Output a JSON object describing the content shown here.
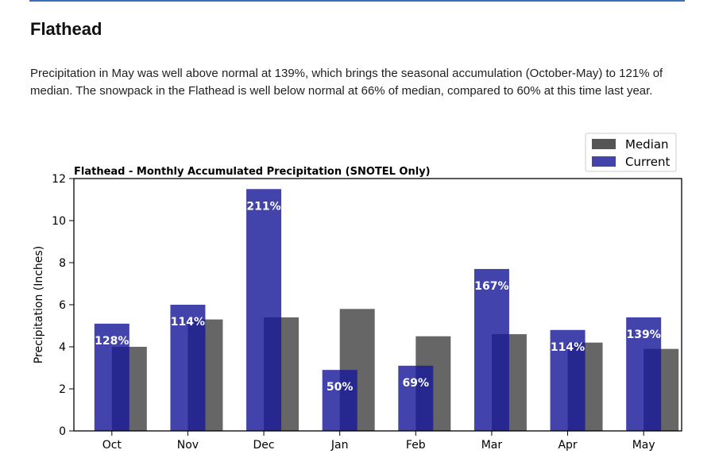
{
  "heading": "Flathead",
  "summary": "Precipitation in May was well above normal at 139%, which brings the seasonal accumulation (October-May) to 121% of median. The snowpack in the Flathead is well below normal at 66% of median, compared to 60% at this time last year.",
  "chart_data": {
    "type": "bar",
    "title": "Flathead - Monthly Accumulated Precipitation (SNOTEL Only)",
    "xlabel": "",
    "ylabel": "Precipitation (Inches)",
    "ylim": [
      0,
      12
    ],
    "yticks": [
      0,
      2,
      4,
      6,
      8,
      10,
      12
    ],
    "categories": [
      "Oct",
      "Nov",
      "Dec",
      "Jan",
      "Feb",
      "Mar",
      "Apr",
      "May"
    ],
    "series": [
      {
        "name": "Median",
        "color": "#555555",
        "values": [
          4.0,
          5.3,
          5.4,
          5.8,
          4.5,
          4.6,
          4.2,
          3.9
        ]
      },
      {
        "name": "Current",
        "color": "#1a1a9a",
        "values": [
          5.1,
          6.0,
          11.5,
          2.9,
          3.1,
          7.7,
          4.8,
          5.4
        ]
      }
    ],
    "percent_labels": [
      "128%",
      "114%",
      "211%",
      "50%",
      "69%",
      "167%",
      "114%",
      "139%"
    ],
    "legend": "top-right",
    "grid": false
  }
}
